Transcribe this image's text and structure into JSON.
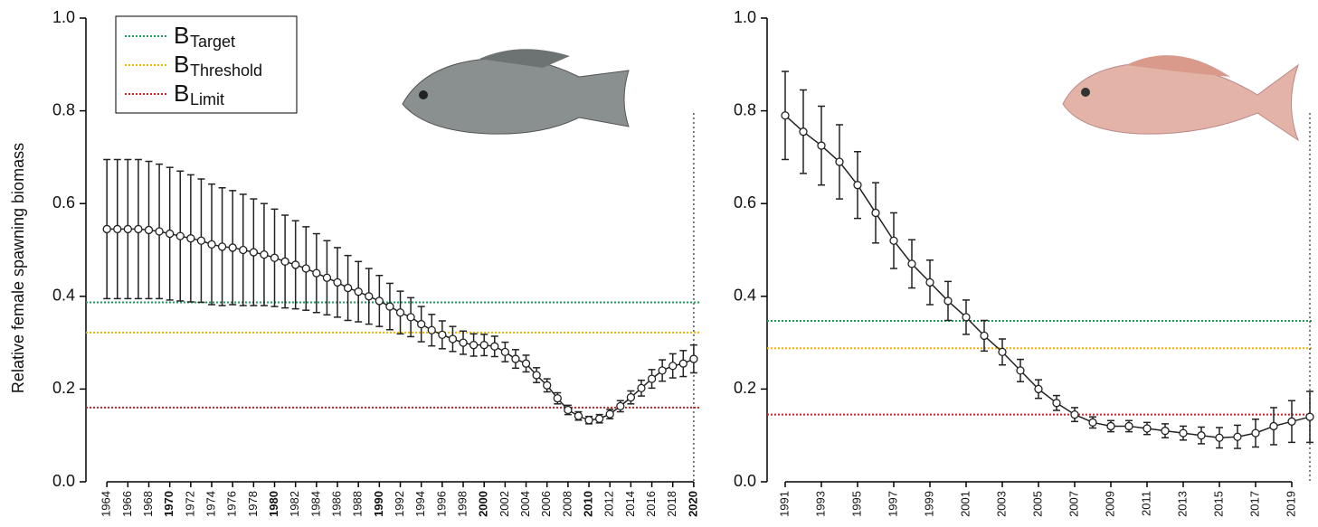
{
  "chart_data": [
    {
      "type": "line",
      "y_label": "Relative female spawning biomass",
      "x": [
        1964,
        1965,
        1966,
        1967,
        1968,
        1969,
        1970,
        1971,
        1972,
        1973,
        1974,
        1975,
        1976,
        1977,
        1978,
        1979,
        1980,
        1981,
        1982,
        1983,
        1984,
        1985,
        1986,
        1987,
        1988,
        1989,
        1990,
        1991,
        1992,
        1993,
        1994,
        1995,
        1996,
        1997,
        1998,
        1999,
        2000,
        2001,
        2002,
        2003,
        2004,
        2005,
        2006,
        2007,
        2008,
        2009,
        2010,
        2011,
        2012,
        2013,
        2014,
        2015,
        2016,
        2017,
        2018,
        2019,
        2020
      ],
      "series": [
        {
          "color": "#222222",
          "values": [
            0.545,
            0.545,
            0.545,
            0.545,
            0.543,
            0.54,
            0.535,
            0.53,
            0.525,
            0.52,
            0.512,
            0.507,
            0.505,
            0.5,
            0.495,
            0.49,
            0.483,
            0.475,
            0.468,
            0.46,
            0.45,
            0.44,
            0.43,
            0.418,
            0.41,
            0.4,
            0.39,
            0.378,
            0.365,
            0.355,
            0.34,
            0.327,
            0.317,
            0.308,
            0.3,
            0.295,
            0.295,
            0.292,
            0.28,
            0.265,
            0.255,
            0.23,
            0.208,
            0.18,
            0.155,
            0.142,
            0.133,
            0.136,
            0.146,
            0.163,
            0.182,
            0.202,
            0.222,
            0.24,
            0.25,
            0.255,
            0.265
          ],
          "errors": [
            0.15,
            0.15,
            0.15,
            0.15,
            0.148,
            0.145,
            0.143,
            0.14,
            0.137,
            0.133,
            0.13,
            0.127,
            0.123,
            0.12,
            0.115,
            0.11,
            0.105,
            0.1,
            0.095,
            0.09,
            0.085,
            0.08,
            0.075,
            0.07,
            0.065,
            0.06,
            0.055,
            0.05,
            0.046,
            0.042,
            0.038,
            0.034,
            0.03,
            0.027,
            0.025,
            0.024,
            0.023,
            0.022,
            0.021,
            0.02,
            0.018,
            0.016,
            0.014,
            0.012,
            0.01,
            0.009,
            0.008,
            0.009,
            0.01,
            0.012,
            0.014,
            0.017,
            0.02,
            0.023,
            0.026,
            0.028,
            0.03
          ]
        }
      ],
      "reference_lines": [
        {
          "symbol": "B",
          "subscript": "Target",
          "value": 0.387,
          "color": "#1a9e5a"
        },
        {
          "symbol": "B",
          "subscript": "Threshold",
          "value": 0.322,
          "color": "#f0b400"
        },
        {
          "symbol": "B",
          "subscript": "Limit",
          "value": 0.16,
          "color": "#d62020"
        }
      ],
      "vline": 2020,
      "legend": true,
      "xlim": [
        1962,
        2020.7
      ],
      "ylim": [
        0,
        1
      ],
      "xticks": [
        1964,
        1966,
        1968,
        1970,
        1972,
        1974,
        1976,
        1978,
        1980,
        1982,
        1984,
        1986,
        1988,
        1990,
        1992,
        1994,
        1996,
        1998,
        2000,
        2002,
        2004,
        2006,
        2008,
        2010,
        2012,
        2014,
        2016,
        2018,
        2020
      ],
      "xticks_bold": [
        1970,
        1980,
        1990,
        2000,
        2010,
        2020
      ],
      "yticks": [
        {
          "value": 0,
          "label": "0.0"
        },
        {
          "value": 0.2,
          "label": "0.2"
        },
        {
          "value": 0.4,
          "label": "0.4"
        },
        {
          "value": 0.6,
          "label": "0.6"
        },
        {
          "value": 0.8,
          "label": "0.8"
        },
        {
          "value": 1,
          "label": "1.0"
        }
      ]
    },
    {
      "type": "line",
      "x": [
        1991,
        1992,
        1993,
        1994,
        1995,
        1996,
        1997,
        1998,
        1999,
        2000,
        2001,
        2002,
        2003,
        2004,
        2005,
        2006,
        2007,
        2008,
        2009,
        2010,
        2011,
        2012,
        2013,
        2014,
        2015,
        2016,
        2017,
        2018,
        2019,
        2020
      ],
      "series": [
        {
          "color": "#222222",
          "values": [
            0.79,
            0.755,
            0.725,
            0.69,
            0.64,
            0.58,
            0.52,
            0.47,
            0.43,
            0.39,
            0.355,
            0.315,
            0.28,
            0.24,
            0.2,
            0.17,
            0.145,
            0.128,
            0.12,
            0.12,
            0.115,
            0.11,
            0.105,
            0.1,
            0.095,
            0.097,
            0.105,
            0.12,
            0.13,
            0.14
          ],
          "errors": [
            0.095,
            0.09,
            0.085,
            0.08,
            0.072,
            0.065,
            0.06,
            0.052,
            0.048,
            0.042,
            0.037,
            0.033,
            0.028,
            0.024,
            0.02,
            0.016,
            0.015,
            0.012,
            0.012,
            0.012,
            0.013,
            0.015,
            0.015,
            0.018,
            0.022,
            0.025,
            0.03,
            0.04,
            0.045,
            0.055
          ]
        }
      ],
      "reference_lines": [
        {
          "value": 0.347,
          "color": "#1a9e5a"
        },
        {
          "value": 0.288,
          "color": "#f0b400"
        },
        {
          "value": 0.145,
          "color": "#d62020"
        }
      ],
      "vline": 2020,
      "legend": false,
      "xlim": [
        1990,
        2020.2
      ],
      "ylim": [
        0,
        1
      ],
      "xticks": [
        1991,
        1993,
        1995,
        1997,
        1999,
        2001,
        2003,
        2005,
        2007,
        2009,
        2011,
        2013,
        2015,
        2017,
        2019
      ],
      "xticks_bold": [],
      "yticks": [
        {
          "value": 0,
          "label": "0.0"
        },
        {
          "value": 0.2,
          "label": "0.2"
        },
        {
          "value": 0.4,
          "label": "0.4"
        },
        {
          "value": 0.6,
          "label": "0.6"
        },
        {
          "value": 0.8,
          "label": "0.8"
        },
        {
          "value": 1,
          "label": "1.0"
        }
      ]
    }
  ]
}
